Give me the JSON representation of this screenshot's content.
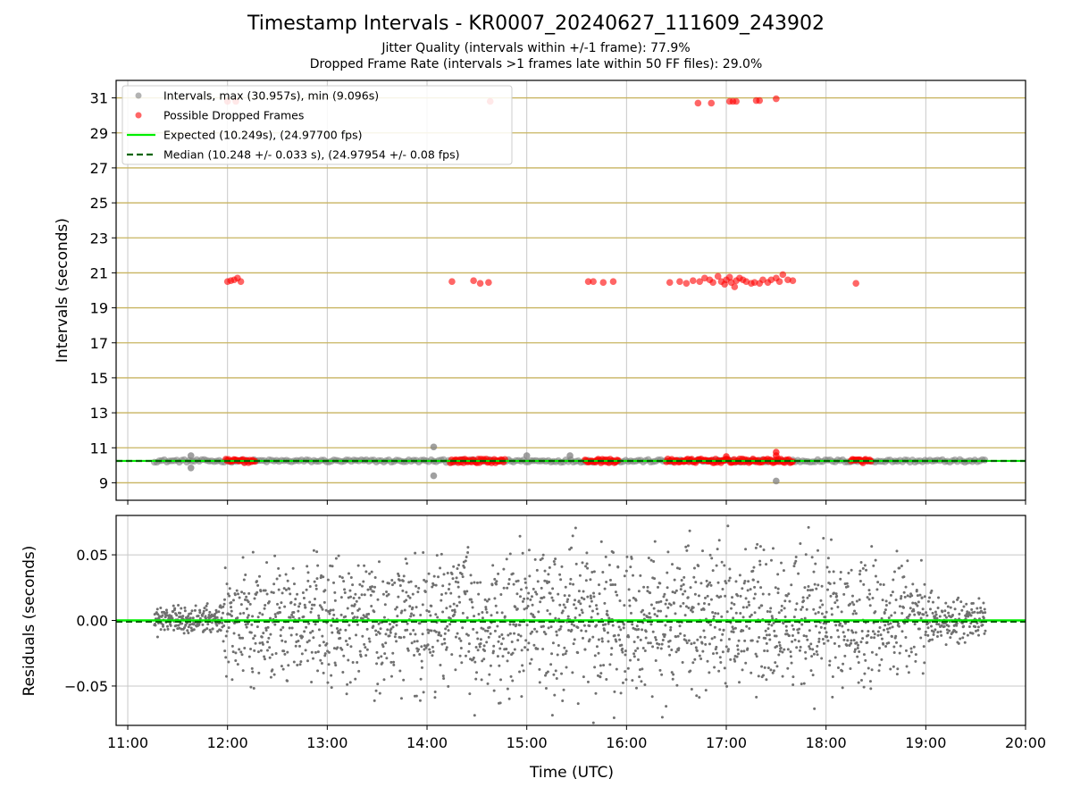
{
  "title": "Timestamp Intervals - KR0007_20240627_111609_243902",
  "subtitle_1": "Jitter Quality (intervals within +/-1 frame): 77.9%",
  "subtitle_2": "Dropped Frame Rate (intervals >1 frames late within 50 FF files): 29.0%",
  "colors": {
    "intervals": "#808080",
    "dropped": "#ff0000",
    "expected": "#00ee00",
    "median": "#006400",
    "hgrid": "#c8b460",
    "vgrid": "#c8c8c8"
  },
  "chart_data": [
    {
      "type": "scatter",
      "name": "intervals",
      "ylabel": "Intervals (seconds)",
      "xlim": [
        "10:53",
        "20:00"
      ],
      "ylim": [
        8.0,
        32.0
      ],
      "yticks": [
        9,
        11,
        13,
        15,
        17,
        19,
        21,
        23,
        25,
        27,
        29,
        31
      ],
      "grid": true,
      "legend_position": "upper-left",
      "legend": [
        "Intervals, max (30.957s), min (9.096s)",
        "Possible Dropped Frames",
        "Expected (10.249s), (24.97700 fps)",
        "Median (10.248 +/- 0.033 s), (24.97954 +/- 0.08 fps)"
      ],
      "expected": 10.249,
      "median": 10.248,
      "series": [
        {
          "name": "Intervals, max (30.957s), min (9.096s)",
          "x_range": [
            "11:16",
            "19:36"
          ],
          "y_typical": 10.248,
          "outliers": [
            {
              "x": "11:38",
              "y": 10.55
            },
            {
              "x": "11:38",
              "y": 9.85
            },
            {
              "x": "14:04",
              "y": 11.05
            },
            {
              "x": "14:04",
              "y": 9.4
            },
            {
              "x": "15:00",
              "y": 10.55
            },
            {
              "x": "15:26",
              "y": 10.55
            },
            {
              "x": "17:30",
              "y": 9.1
            }
          ]
        },
        {
          "name": "Possible Dropped Frames",
          "clusters": [
            {
              "x_from": "11:59",
              "x_to": "12:17",
              "y": 10.25
            },
            {
              "x_from": "14:14",
              "x_to": "14:47",
              "y": 10.25
            },
            {
              "x_from": "15:35",
              "x_to": "15:55",
              "y": 10.25
            },
            {
              "x_from": "16:24",
              "x_to": "17:40",
              "y": 10.25
            },
            {
              "x_from": "18:15",
              "x_to": "18:27",
              "y": 10.25
            }
          ],
          "points": [
            {
              "x": "12:00",
              "y": 20.5
            },
            {
              "x": "12:02",
              "y": 20.55
            },
            {
              "x": "12:04",
              "y": 20.6
            },
            {
              "x": "12:06",
              "y": 20.7
            },
            {
              "x": "12:08",
              "y": 20.5
            },
            {
              "x": "12:00",
              "y": 30.8
            },
            {
              "x": "12:05",
              "y": 30.8
            },
            {
              "x": "14:15",
              "y": 20.5
            },
            {
              "x": "14:28",
              "y": 20.55
            },
            {
              "x": "14:32",
              "y": 20.4
            },
            {
              "x": "14:37",
              "y": 20.45
            },
            {
              "x": "14:38",
              "y": 30.8
            },
            {
              "x": "15:37",
              "y": 20.5
            },
            {
              "x": "15:40",
              "y": 20.5
            },
            {
              "x": "15:46",
              "y": 20.45
            },
            {
              "x": "15:52",
              "y": 20.5
            },
            {
              "x": "16:26",
              "y": 20.45
            },
            {
              "x": "16:32",
              "y": 20.5
            },
            {
              "x": "16:36",
              "y": 20.4
            },
            {
              "x": "16:40",
              "y": 20.55
            },
            {
              "x": "16:44",
              "y": 20.5
            },
            {
              "x": "16:47",
              "y": 20.7
            },
            {
              "x": "16:50",
              "y": 20.6
            },
            {
              "x": "16:52",
              "y": 20.45
            },
            {
              "x": "16:55",
              "y": 20.8
            },
            {
              "x": "16:57",
              "y": 20.5
            },
            {
              "x": "16:59",
              "y": 20.35
            },
            {
              "x": "17:00",
              "y": 20.6
            },
            {
              "x": "17:02",
              "y": 20.75
            },
            {
              "x": "17:03",
              "y": 20.45
            },
            {
              "x": "17:05",
              "y": 20.2
            },
            {
              "x": "17:06",
              "y": 20.55
            },
            {
              "x": "17:08",
              "y": 20.7
            },
            {
              "x": "17:10",
              "y": 20.6
            },
            {
              "x": "17:12",
              "y": 20.5
            },
            {
              "x": "17:15",
              "y": 20.4
            },
            {
              "x": "17:17",
              "y": 20.45
            },
            {
              "x": "17:20",
              "y": 20.4
            },
            {
              "x": "17:22",
              "y": 20.6
            },
            {
              "x": "17:25",
              "y": 20.45
            },
            {
              "x": "17:27",
              "y": 20.6
            },
            {
              "x": "17:30",
              "y": 20.7
            },
            {
              "x": "17:32",
              "y": 20.5
            },
            {
              "x": "17:34",
              "y": 20.9
            },
            {
              "x": "17:37",
              "y": 20.6
            },
            {
              "x": "17:40",
              "y": 20.55
            },
            {
              "x": "18:18",
              "y": 20.4
            },
            {
              "x": "16:43",
              "y": 30.7
            },
            {
              "x": "16:51",
              "y": 30.7
            },
            {
              "x": "17:02",
              "y": 30.8
            },
            {
              "x": "17:04",
              "y": 30.8
            },
            {
              "x": "17:06",
              "y": 30.8
            },
            {
              "x": "17:18",
              "y": 30.85
            },
            {
              "x": "17:20",
              "y": 30.85
            },
            {
              "x": "17:30",
              "y": 30.95
            }
          ]
        }
      ]
    },
    {
      "type": "scatter",
      "name": "residuals",
      "xlabel": "Time (UTC)",
      "ylabel": "Residuals (seconds)",
      "xlim": [
        "10:53",
        "20:00"
      ],
      "ylim": [
        -0.08,
        0.08
      ],
      "xticks": [
        "11:00",
        "12:00",
        "13:00",
        "14:00",
        "15:00",
        "16:00",
        "17:00",
        "18:00",
        "19:00",
        "20:00"
      ],
      "yticks": [
        0.05,
        0.0,
        -0.05
      ],
      "ytick_labels": [
        "0.05",
        "0.00",
        "−0.05"
      ],
      "grid": true,
      "expected_residual": 0.0,
      "median_residual": -0.001,
      "series": [
        {
          "name": "residuals",
          "x_range": [
            "11:16",
            "19:36"
          ],
          "envelope": [
            {
              "x": "11:16",
              "amp": 0.015
            },
            {
              "x": "11:55",
              "amp": 0.015
            },
            {
              "x": "12:00",
              "amp": 0.06
            },
            {
              "x": "16:00",
              "amp": 0.08
            },
            {
              "x": "18:00",
              "amp": 0.075
            },
            {
              "x": "19:00",
              "amp": 0.05
            },
            {
              "x": "19:10",
              "amp": 0.02
            },
            {
              "x": "19:36",
              "amp": 0.02
            }
          ]
        }
      ]
    }
  ]
}
